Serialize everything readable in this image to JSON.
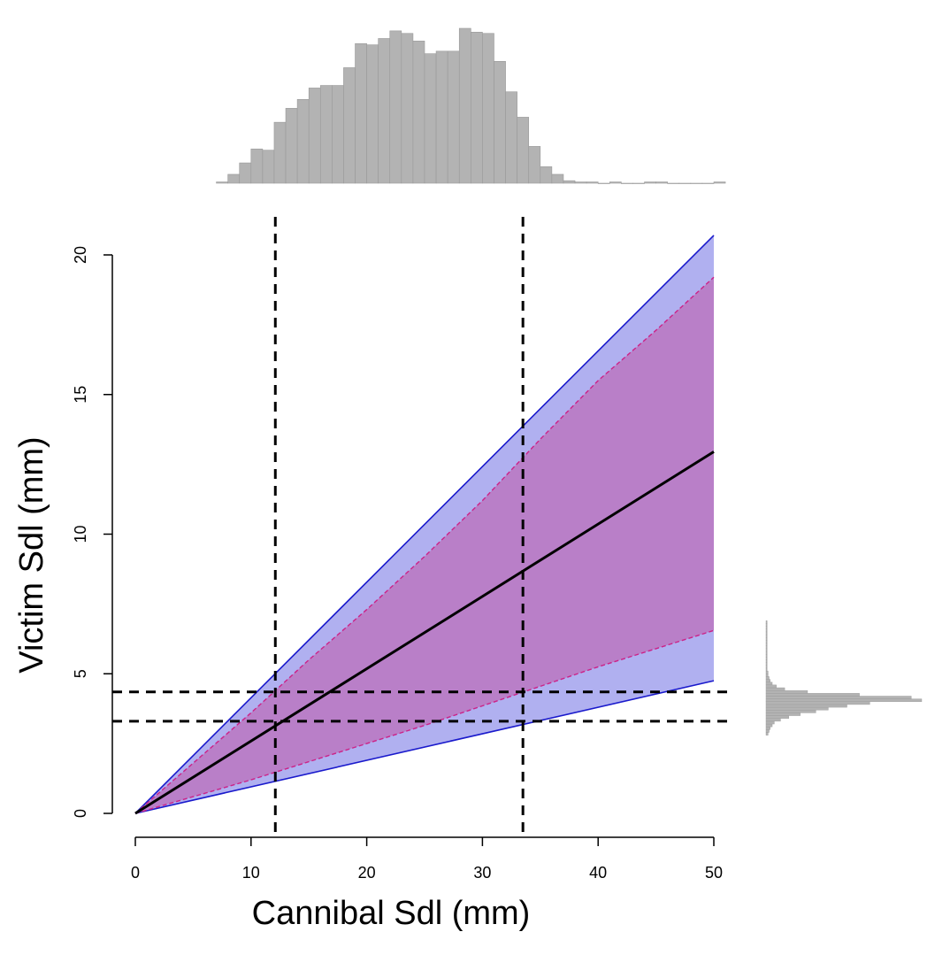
{
  "chart_data": {
    "type": "area",
    "xlabel": "Cannibal Sdl (mm)",
    "ylabel": "Victim Sdl (mm)",
    "xlim": [
      0,
      50
    ],
    "ylim": [
      0,
      20
    ],
    "x_ticks": [
      0,
      10,
      20,
      30,
      40,
      50
    ],
    "y_ticks": [
      0,
      5,
      10,
      15,
      20
    ],
    "x_tick_labels": [
      "0",
      "10",
      "20",
      "30",
      "40",
      "50"
    ],
    "y_tick_labels": [
      "0",
      "5",
      "10",
      "15",
      "20"
    ],
    "grid": false,
    "legend": "none",
    "colors": {
      "outer_band_fill": "#b0b0f0",
      "outer_band_line": "#1a1acc",
      "inner_band_fill": "#b97fc8",
      "inner_band_line": "#cc2288",
      "central_line": "#000000",
      "reference_line": "#000000",
      "histogram_fill": "#b3b3b3",
      "histogram_edge": "#999999"
    },
    "outer_band": {
      "x": [
        0,
        50
      ],
      "upper": [
        0,
        20.7
      ],
      "lower": [
        0,
        4.75
      ]
    },
    "inner_band": {
      "x": [
        0,
        5,
        10,
        15,
        20,
        25,
        30,
        35,
        40,
        45,
        50
      ],
      "upper": [
        0,
        1.8,
        3.6,
        5.5,
        7.3,
        9.2,
        11.2,
        13.4,
        15.5,
        17.3,
        19.2
      ],
      "lower": [
        0,
        0.6,
        1.2,
        1.85,
        2.5,
        3.15,
        3.85,
        4.55,
        5.25,
        5.9,
        6.55
      ]
    },
    "central_line": {
      "x": [
        0,
        50
      ],
      "y": [
        0,
        12.95
      ]
    },
    "reference_lines": {
      "vertical_x": [
        12.1,
        33.5
      ],
      "horizontal_y": [
        3.3,
        4.35
      ]
    },
    "top_histogram": {
      "variable": "Cannibal Sdl (mm)",
      "bin_width": 1,
      "bin_start": 7,
      "counts": [
        1,
        7,
        16,
        27,
        26,
        48,
        59,
        66,
        75,
        77,
        77,
        91,
        110,
        109,
        114,
        120,
        118,
        112,
        102,
        104,
        104,
        122,
        119,
        118,
        96,
        72,
        52,
        29,
        13,
        7,
        2,
        1,
        1,
        0,
        1,
        0,
        0,
        1,
        1,
        0,
        0,
        0,
        0,
        1
      ]
    },
    "right_histogram": {
      "variable": "Victim Sdl (mm)",
      "bin_width": 0.1,
      "bin_start": 2.8,
      "counts": [
        2,
        3,
        4,
        6,
        8,
        14,
        22,
        33,
        48,
        60,
        78,
        100,
        150,
        140,
        90,
        40,
        18,
        10,
        6,
        4,
        3,
        2,
        2,
        1,
        1,
        1,
        1,
        1,
        1,
        1,
        1,
        1,
        1,
        1,
        1,
        1,
        1,
        1,
        1,
        1,
        1
      ]
    }
  }
}
